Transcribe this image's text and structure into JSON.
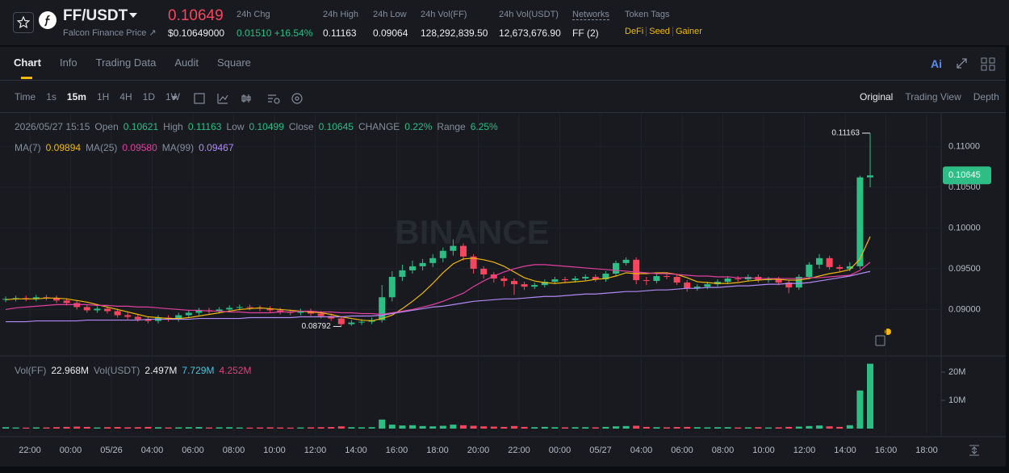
{
  "header": {
    "pair": "FF/USDT",
    "subtitle": "Falcon Finance Price ↗",
    "last_price": "0.10649",
    "last_price_usd": "$0.10649000",
    "stats": [
      {
        "label": "24h Chg",
        "value": "0.01510 +16.54%"
      },
      {
        "label": "24h High",
        "value": "0.11163"
      },
      {
        "label": "24h Low",
        "value": "0.09064"
      },
      {
        "label": "24h Vol(FF)",
        "value": "128,292,839.50"
      },
      {
        "label": "24h Vol(USDT)",
        "value": "12,673,676.90"
      },
      {
        "label": "Networks",
        "value": "FF (2)"
      }
    ],
    "token_tags_label": "Token Tags",
    "token_tags": [
      "DeFi",
      "Seed",
      "Gainer"
    ]
  },
  "tabs": [
    "Chart",
    "Info",
    "Trading Data",
    "Audit",
    "Square"
  ],
  "ai_label": "Ai",
  "toolbar": {
    "time_label": "Time",
    "intervals": [
      "1s",
      "15m",
      "1H",
      "4H",
      "1D",
      "1W"
    ],
    "views": [
      "Original",
      "Trading View",
      "Depth"
    ]
  },
  "chart_data": {
    "type": "candlestick",
    "watermark": "BINANCE",
    "info": {
      "date": "2026/05/27 15:15",
      "open_label": "Open",
      "high_label": "High",
      "low_label": "Low",
      "close_label": "Close",
      "change_label": "CHANGE",
      "change": "0.22%",
      "range_label": "Range",
      "range": "6.25%"
    },
    "up_color": "#2ebd85",
    "down_color": "#f6465d",
    "open": [
      0.0912,
      0.0913,
      0.0914,
      0.0913,
      0.0915,
      0.0914,
      0.0911,
      0.0908,
      0.0903,
      0.0899,
      0.0901,
      0.0898,
      0.0893,
      0.0891,
      0.0888,
      0.0886,
      0.089,
      0.0888,
      0.0893,
      0.0896,
      0.0899,
      0.0898,
      0.09,
      0.0902,
      0.0903,
      0.0902,
      0.0901,
      0.0899,
      0.0897,
      0.0896,
      0.0898,
      0.0895,
      0.0892,
      0.0889,
      0.0882,
      0.0884,
      0.0885,
      0.0887,
      0.0915,
      0.094,
      0.0948,
      0.0953,
      0.0957,
      0.0963,
      0.0972,
      0.0978,
      0.0965,
      0.095,
      0.0943,
      0.0938,
      0.0935,
      0.0931,
      0.0928,
      0.093,
      0.0934,
      0.0937,
      0.0936,
      0.0938,
      0.094,
      0.0937,
      0.0944,
      0.0957,
      0.0961,
      0.0936,
      0.0935,
      0.0941,
      0.094,
      0.0933,
      0.0926,
      0.0928,
      0.0931,
      0.0934,
      0.0938,
      0.0937,
      0.094,
      0.0936,
      0.0937,
      0.0933,
      0.0927,
      0.094,
      0.0955,
      0.0963,
      0.0952,
      0.095,
      0.0953,
      0.10621
    ],
    "high": [
      0.0916,
      0.0917,
      0.0917,
      0.0918,
      0.0918,
      0.0917,
      0.0914,
      0.0911,
      0.0906,
      0.0904,
      0.0904,
      0.0901,
      0.0896,
      0.0894,
      0.0891,
      0.0893,
      0.0893,
      0.0896,
      0.0899,
      0.0902,
      0.0902,
      0.0903,
      0.0905,
      0.0906,
      0.0906,
      0.0905,
      0.0904,
      0.0902,
      0.09,
      0.0901,
      0.0901,
      0.0898,
      0.0895,
      0.0892,
      0.0887,
      0.0888,
      0.089,
      0.093,
      0.0947,
      0.0955,
      0.096,
      0.0962,
      0.0968,
      0.0976,
      0.0986,
      0.0981,
      0.0968,
      0.0953,
      0.0946,
      0.0941,
      0.0938,
      0.0934,
      0.0933,
      0.0937,
      0.094,
      0.094,
      0.0941,
      0.0943,
      0.0943,
      0.0947,
      0.096,
      0.0964,
      0.0964,
      0.094,
      0.0944,
      0.0944,
      0.0943,
      0.0936,
      0.0931,
      0.0934,
      0.0937,
      0.0941,
      0.0941,
      0.0943,
      0.0943,
      0.094,
      0.094,
      0.0936,
      0.0943,
      0.0958,
      0.0968,
      0.0966,
      0.0955,
      0.0958,
      0.1064,
      0.11163
    ],
    "low": [
      0.0909,
      0.091,
      0.091,
      0.091,
      0.0911,
      0.0908,
      0.0905,
      0.09,
      0.0896,
      0.0896,
      0.0895,
      0.089,
      0.0888,
      0.0885,
      0.0883,
      0.0883,
      0.0885,
      0.0885,
      0.089,
      0.0893,
      0.0895,
      0.0895,
      0.0897,
      0.0899,
      0.0899,
      0.0898,
      0.0896,
      0.0894,
      0.0893,
      0.0893,
      0.0892,
      0.0889,
      0.0886,
      0.08792,
      0.088,
      0.0881,
      0.0882,
      0.0884,
      0.091,
      0.0935,
      0.0944,
      0.0948,
      0.0952,
      0.0958,
      0.0966,
      0.096,
      0.0944,
      0.0938,
      0.0933,
      0.0928,
      0.0918,
      0.0924,
      0.0925,
      0.0927,
      0.0931,
      0.0933,
      0.0933,
      0.0935,
      0.0934,
      0.0934,
      0.0941,
      0.0954,
      0.0931,
      0.093,
      0.0932,
      0.0937,
      0.093,
      0.0922,
      0.0923,
      0.0925,
      0.0928,
      0.0931,
      0.0934,
      0.0934,
      0.0933,
      0.0933,
      0.093,
      0.092,
      0.0924,
      0.0937,
      0.095,
      0.0949,
      0.0946,
      0.0947,
      0.095,
      0.10499
    ],
    "close": [
      0.0913,
      0.0914,
      0.0913,
      0.0915,
      0.0914,
      0.0911,
      0.0908,
      0.0903,
      0.0899,
      0.0901,
      0.0898,
      0.0893,
      0.0891,
      0.0888,
      0.0886,
      0.089,
      0.0888,
      0.0893,
      0.0896,
      0.0899,
      0.0898,
      0.09,
      0.0902,
      0.0903,
      0.0902,
      0.0901,
      0.0899,
      0.0897,
      0.0896,
      0.0898,
      0.0895,
      0.0892,
      0.0889,
      0.0882,
      0.0884,
      0.0885,
      0.0887,
      0.0915,
      0.094,
      0.0948,
      0.0953,
      0.0957,
      0.0963,
      0.0972,
      0.0978,
      0.0965,
      0.095,
      0.0943,
      0.0938,
      0.0935,
      0.0931,
      0.0928,
      0.093,
      0.0934,
      0.0937,
      0.0936,
      0.0938,
      0.094,
      0.0937,
      0.0944,
      0.0957,
      0.0961,
      0.0936,
      0.0935,
      0.0941,
      0.094,
      0.0933,
      0.0926,
      0.0928,
      0.0931,
      0.0934,
      0.0938,
      0.0937,
      0.094,
      0.0936,
      0.0937,
      0.0933,
      0.0927,
      0.094,
      0.0955,
      0.0963,
      0.0952,
      0.095,
      0.0953,
      0.10621,
      0.10645
    ],
    "volume": [
      500000,
      400000,
      350000,
      450000,
      400000,
      500000,
      600000,
      700000,
      600000,
      400000,
      500000,
      550000,
      450000,
      500000,
      600000,
      500000,
      400000,
      450000,
      500000,
      550000,
      400000,
      450000,
      500000,
      400000,
      350000,
      400000,
      450000,
      400000,
      350000,
      400000,
      450000,
      500000,
      550000,
      800000,
      500000,
      450000,
      500000,
      3200000,
      1400000,
      1100000,
      1200000,
      900000,
      800000,
      1000000,
      1400000,
      1200000,
      1000000,
      800000,
      700000,
      600000,
      900000,
      600000,
      500000,
      600000,
      500000,
      450000,
      500000,
      500000,
      450000,
      600000,
      800000,
      900000,
      1000000,
      600000,
      500000,
      450000,
      550000,
      600000,
      500000,
      450000,
      500000,
      500000,
      400000,
      450000,
      500000,
      400000,
      450000,
      600000,
      700000,
      900000,
      1100000,
      800000,
      600000,
      1200000,
      13500000,
      22968000
    ],
    "ma": [
      {
        "name": "MA(7)",
        "value_label": "0.09894",
        "color": "#f0b90b",
        "values": [
          0.0912,
          0.0913,
          0.0913,
          0.0913,
          0.0914,
          0.0914,
          0.0913,
          0.0911,
          0.0909,
          0.0906,
          0.0903,
          0.09,
          0.0897,
          0.0894,
          0.0891,
          0.089,
          0.0889,
          0.0889,
          0.089,
          0.0892,
          0.0894,
          0.0896,
          0.0898,
          0.09,
          0.0901,
          0.0902,
          0.0901,
          0.09,
          0.0899,
          0.0898,
          0.0897,
          0.0896,
          0.0894,
          0.0891,
          0.0889,
          0.0887,
          0.0886,
          0.0889,
          0.0893,
          0.0901,
          0.091,
          0.092,
          0.0932,
          0.0945,
          0.0956,
          0.0962,
          0.0963,
          0.0961,
          0.0958,
          0.0953,
          0.0946,
          0.0939,
          0.0935,
          0.0933,
          0.0932,
          0.0933,
          0.0934,
          0.0935,
          0.0937,
          0.0938,
          0.0941,
          0.0945,
          0.0944,
          0.0944,
          0.0945,
          0.0945,
          0.0943,
          0.0939,
          0.0934,
          0.0933,
          0.0932,
          0.0932,
          0.0933,
          0.0935,
          0.0936,
          0.0937,
          0.0937,
          0.0936,
          0.0936,
          0.0938,
          0.0941,
          0.0944,
          0.0946,
          0.0949,
          0.0962,
          0.09894
        ]
      },
      {
        "name": "MA(25)",
        "value_label": "0.09580",
        "color": "#e040a0",
        "values": [
          0.09,
          0.0902,
          0.0903,
          0.0904,
          0.0905,
          0.0906,
          0.0906,
          0.0906,
          0.0906,
          0.0905,
          0.0905,
          0.0904,
          0.0904,
          0.0903,
          0.0903,
          0.0902,
          0.0901,
          0.09,
          0.0899,
          0.0899,
          0.0898,
          0.0898,
          0.0897,
          0.0897,
          0.0896,
          0.0896,
          0.0896,
          0.0897,
          0.0897,
          0.0898,
          0.0898,
          0.0897,
          0.0897,
          0.0896,
          0.0896,
          0.0895,
          0.0895,
          0.0894,
          0.0896,
          0.0898,
          0.09,
          0.0903,
          0.0906,
          0.091,
          0.0915,
          0.092,
          0.0928,
          0.0935,
          0.0941,
          0.0946,
          0.095,
          0.0953,
          0.0955,
          0.0955,
          0.0954,
          0.0953,
          0.0952,
          0.0951,
          0.095,
          0.0949,
          0.0948,
          0.0947,
          0.0946,
          0.0945,
          0.0944,
          0.0944,
          0.0943,
          0.0942,
          0.0941,
          0.0941,
          0.094,
          0.094,
          0.0939,
          0.0939,
          0.0938,
          0.0938,
          0.0938,
          0.0938,
          0.0938,
          0.0939,
          0.0939,
          0.094,
          0.0941,
          0.0942,
          0.0948,
          0.0958
        ]
      },
      {
        "name": "MA(99)",
        "value_label": "0.09467",
        "color": "#b18af5",
        "values": [
          0.0885,
          0.0885,
          0.0885,
          0.0886,
          0.0886,
          0.0886,
          0.0886,
          0.0886,
          0.0887,
          0.0887,
          0.0887,
          0.0887,
          0.0887,
          0.0887,
          0.0888,
          0.0888,
          0.0888,
          0.0888,
          0.0888,
          0.0889,
          0.0889,
          0.0889,
          0.0889,
          0.0889,
          0.089,
          0.089,
          0.089,
          0.089,
          0.089,
          0.0891,
          0.0891,
          0.0891,
          0.0891,
          0.0891,
          0.0892,
          0.0892,
          0.0892,
          0.0893,
          0.0895,
          0.0897,
          0.0899,
          0.0901,
          0.0903,
          0.0904,
          0.0906,
          0.0908,
          0.091,
          0.0911,
          0.0912,
          0.0913,
          0.0913,
          0.0914,
          0.0915,
          0.0916,
          0.0916,
          0.0917,
          0.0918,
          0.0919,
          0.0919,
          0.092,
          0.0921,
          0.0922,
          0.0922,
          0.0923,
          0.0924,
          0.0924,
          0.0925,
          0.0926,
          0.0926,
          0.0927,
          0.0927,
          0.0928,
          0.0929,
          0.0929,
          0.093,
          0.0931,
          0.0931,
          0.0932,
          0.0932,
          0.0933,
          0.0935,
          0.0937,
          0.0939,
          0.0941,
          0.0944,
          0.09467
        ]
      }
    ],
    "volume_legend": [
      {
        "name": "Vol(FF)",
        "label": "22.968M",
        "color": "#eaecef"
      },
      {
        "name": "Vol(USDT)",
        "label": "2.497M",
        "color": "#eaecef"
      },
      {
        "label": "7.729M",
        "color": "#4fc3d9"
      },
      {
        "label": "4.252M",
        "color": "#e0407a"
      }
    ],
    "ylim": [
      0.0844,
      0.1141
    ],
    "yticks": [
      {
        "value": 0.11,
        "label": "0.11000"
      },
      {
        "value": 0.105,
        "label": "0.10500"
      },
      {
        "value": 0.1,
        "label": "0.10000"
      },
      {
        "value": 0.095,
        "label": "0.09500"
      },
      {
        "value": 0.09,
        "label": "0.09000"
      }
    ],
    "volume_ylim": [
      0,
      24570000
    ],
    "volume_yticks": [
      {
        "value": 20000000,
        "label": "20M"
      },
      {
        "value": 10000000,
        "label": "10M"
      }
    ],
    "xtick_labels": [
      "22:00",
      "00:00",
      "05/26",
      "04:00",
      "06:00",
      "08:00",
      "10:00",
      "12:00",
      "14:00",
      "16:00",
      "18:00",
      "20:00",
      "22:00",
      "00:00",
      "05/27",
      "04:00",
      "06:00",
      "08:00",
      "10:00",
      "12:00",
      "14:00",
      "16:00",
      "18:00"
    ],
    "grid": true
  }
}
